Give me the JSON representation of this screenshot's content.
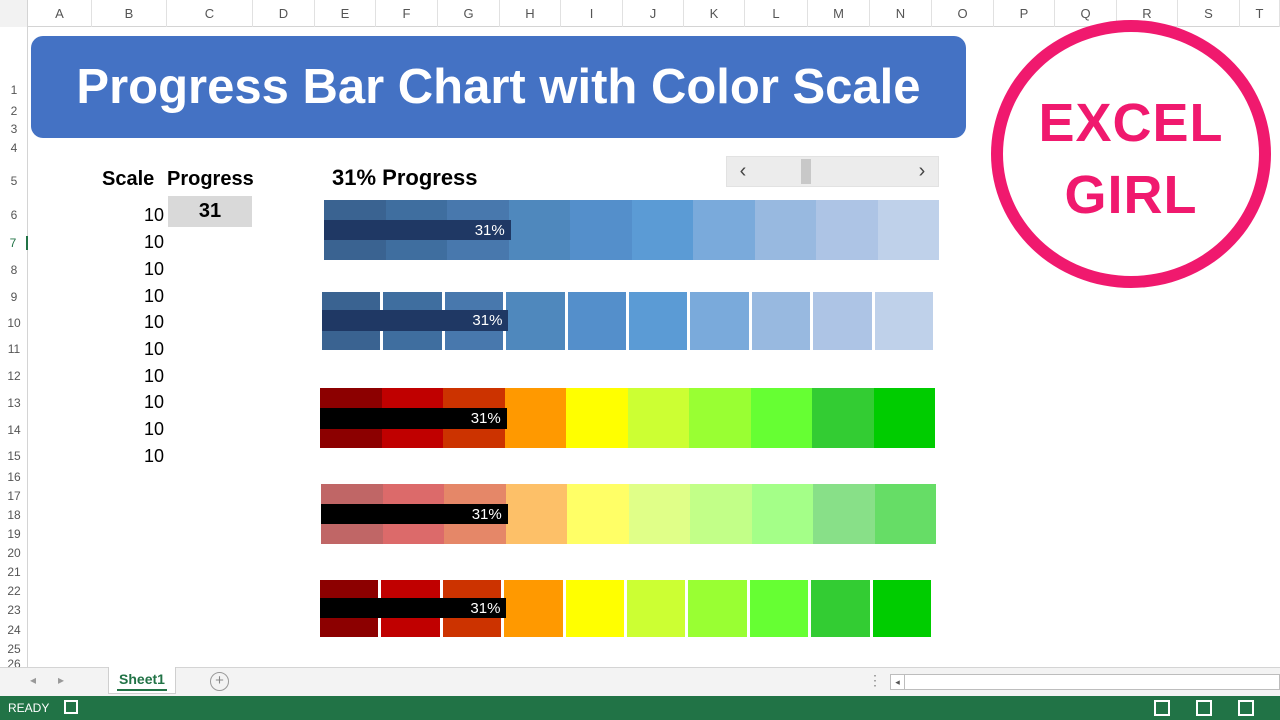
{
  "sheet": {
    "columns": [
      "A",
      "B",
      "C",
      "D",
      "E",
      "F",
      "G",
      "H",
      "I",
      "J",
      "K",
      "L",
      "M",
      "N",
      "O",
      "P",
      "Q",
      "R",
      "S",
      "T"
    ],
    "rows": [
      "1",
      "2",
      "3",
      "4",
      "5",
      "6",
      "7",
      "8",
      "9",
      "10",
      "11",
      "12",
      "13",
      "14",
      "15",
      "16",
      "17",
      "18",
      "19",
      "20",
      "21",
      "22",
      "23",
      "24",
      "25",
      "26"
    ],
    "active_row": "7"
  },
  "banner": {
    "title": "Progress Bar Chart with Color Scale"
  },
  "table": {
    "scale_header": "Scale",
    "progress_header": "Progress",
    "progress_value": "31",
    "scale_values": [
      "10",
      "10",
      "10",
      "10",
      "10",
      "10",
      "10",
      "10",
      "10",
      "10"
    ]
  },
  "chart": {
    "caption": "31% Progress",
    "progress_fraction": 0.31,
    "bar_label": "31%",
    "scroll": {
      "left_arrow": "‹",
      "right_arrow": "›"
    },
    "palettes": {
      "blue": [
        "#3a6391",
        "#3f6e9f",
        "#4878ad",
        "#4f88bd",
        "#548fcb",
        "#5b9bd5",
        "#7aaadb",
        "#98b9e0",
        "#adc4e5",
        "#bfd1ea"
      ],
      "red_green": [
        "#8c0000",
        "#c00000",
        "#cc3300",
        "#ff9900",
        "#ffff00",
        "#ccff33",
        "#99ff33",
        "#66ff33",
        "#33cc33",
        "#00cc00"
      ],
      "soft_red_green": [
        "#c06666",
        "#dc6a6a",
        "#e58768",
        "#fdc068",
        "#ffff66",
        "#e0ff88",
        "#c2ff88",
        "#a4ff88",
        "#88e088",
        "#66dd66"
      ]
    }
  },
  "logo": {
    "line1": "EXCEL",
    "line2": "GIRL",
    "color": "#f0196e"
  },
  "tabs": {
    "prev": "◂",
    "next": "▸",
    "sheet1": "Sheet1",
    "add": "+",
    "dots": "⋮",
    "scroll_left": "◂"
  },
  "status": {
    "text": "READY",
    "accent": "#217346"
  }
}
